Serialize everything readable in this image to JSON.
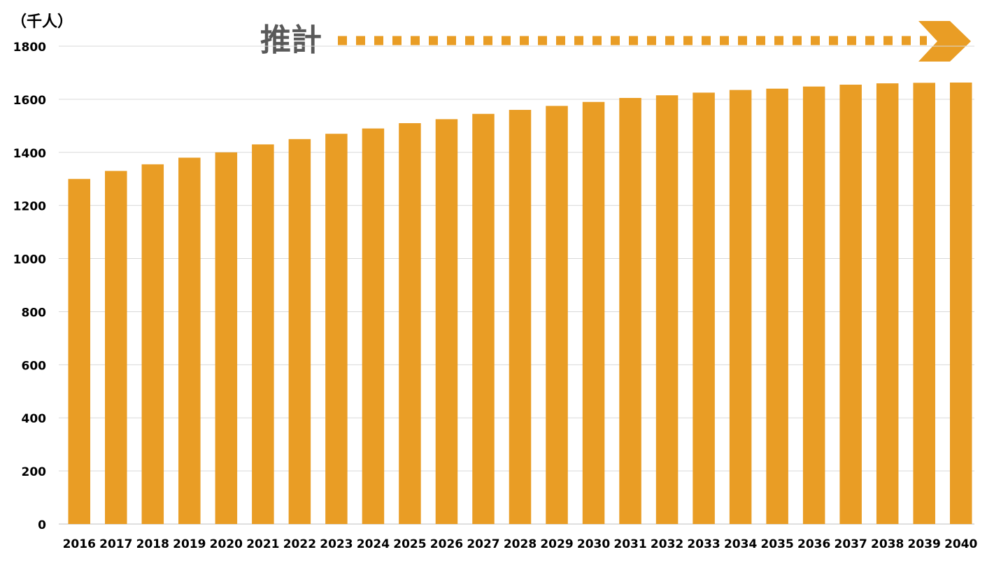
{
  "chart_data": {
    "type": "bar",
    "unit_label": "（千人）",
    "annotation": "推計",
    "categories": [
      "2016",
      "2017",
      "2018",
      "2019",
      "2020",
      "2021",
      "2022",
      "2023",
      "2024",
      "2025",
      "2026",
      "2027",
      "2028",
      "2029",
      "2030",
      "2031",
      "2032",
      "2033",
      "2034",
      "2035",
      "2036",
      "2037",
      "2038",
      "2039",
      "2040"
    ],
    "values": [
      1300,
      1330,
      1355,
      1380,
      1400,
      1430,
      1450,
      1470,
      1490,
      1510,
      1525,
      1545,
      1560,
      1575,
      1590,
      1605,
      1615,
      1625,
      1635,
      1640,
      1648,
      1655,
      1660,
      1662,
      1663
    ],
    "color": "#E99D25",
    "ylim": [
      0,
      1800
    ],
    "yticks": [
      0,
      200,
      400,
      600,
      800,
      1000,
      1200,
      1400,
      1600,
      1800
    ],
    "grid": true
  }
}
